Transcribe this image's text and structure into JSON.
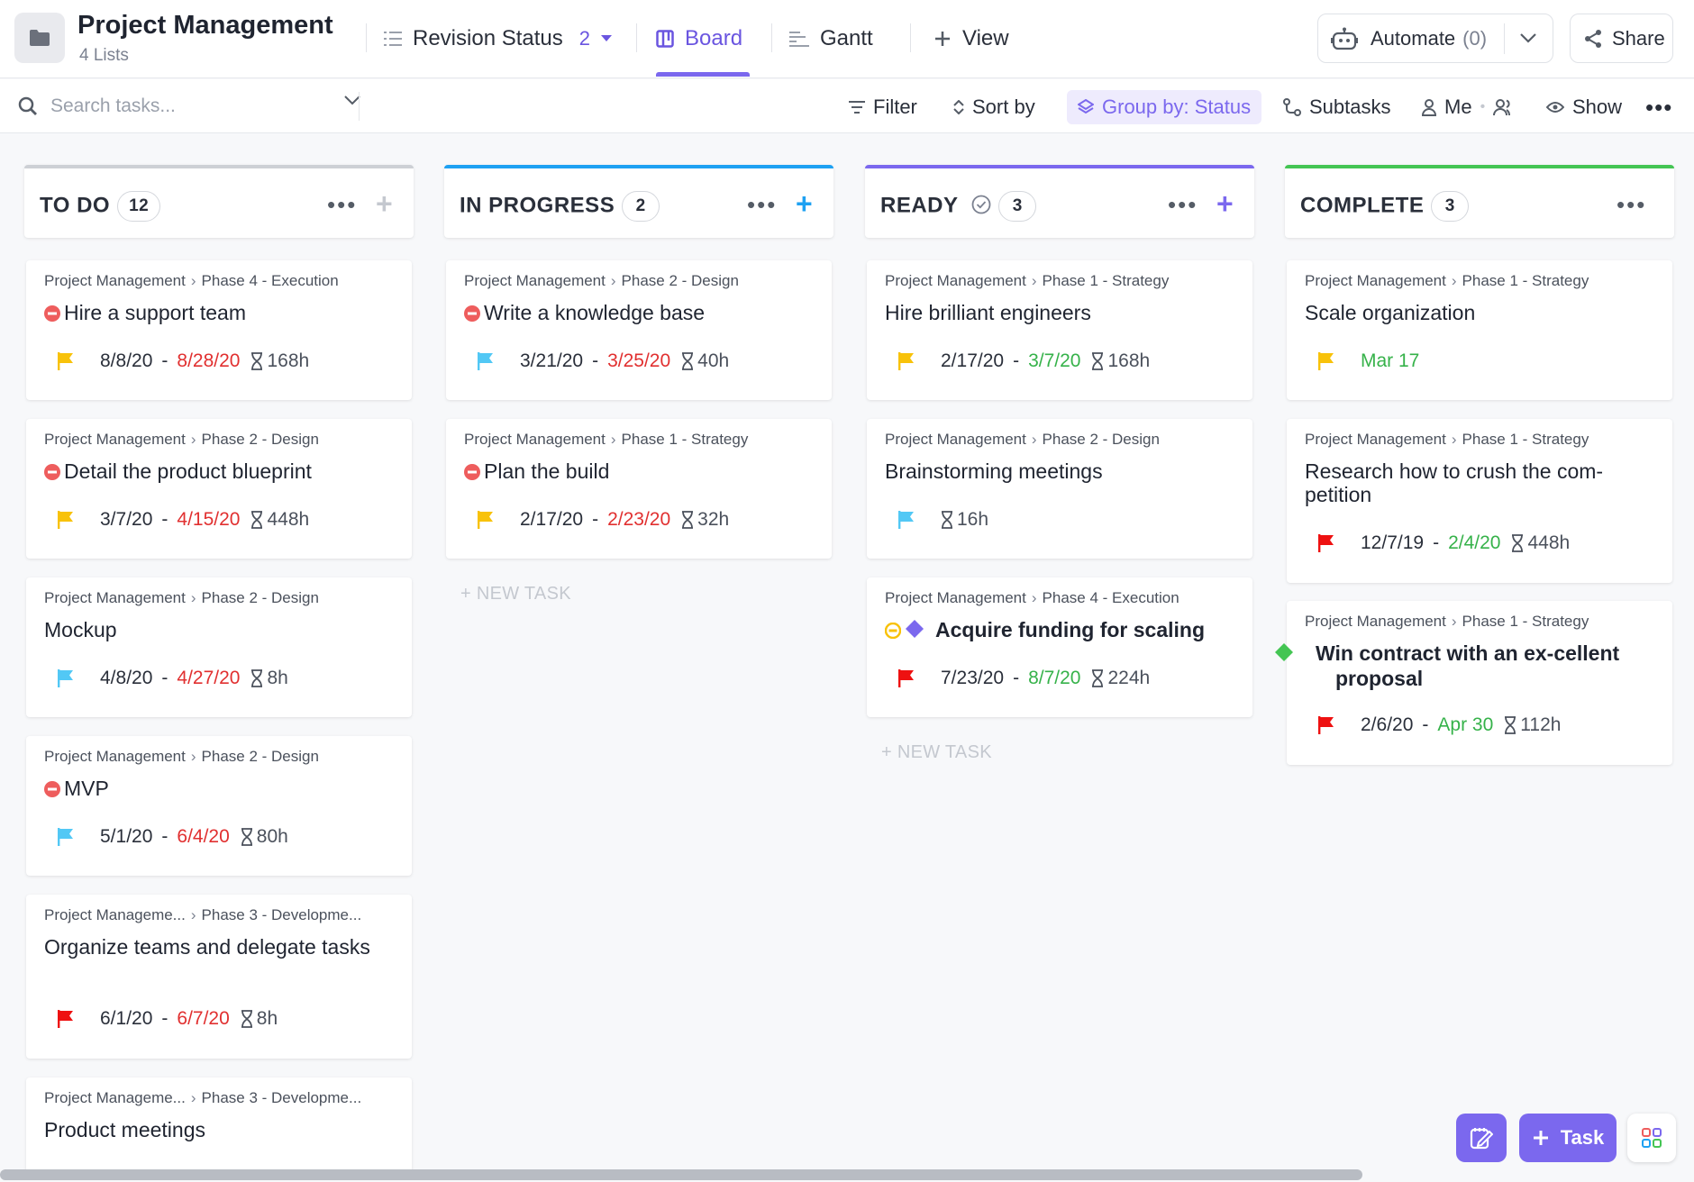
{
  "header": {
    "project_title": "Project Management",
    "project_sub": "4 Lists",
    "views": [
      {
        "label": "Revision Status",
        "count": "2"
      },
      {
        "label": "Board"
      },
      {
        "label": "Gantt"
      },
      {
        "label": "View"
      }
    ],
    "automate_label": "Automate",
    "automate_count": "(0)",
    "share_label": "Share",
    "icons": {
      "folder": "folder-icon",
      "list": "list-icon",
      "board": "board-icon",
      "gantt": "gantt-icon",
      "automate": "robot-icon",
      "share": "share-icon"
    }
  },
  "toolbar": {
    "search_placeholder": "Search tasks...",
    "filter": "Filter",
    "sort": "Sort by",
    "group": "Group by: Status",
    "subtasks": "Subtasks",
    "me": "Me",
    "show": "Show"
  },
  "colors": {
    "accent": "#7b68ee",
    "todo": "#d3d5da",
    "in_progress": "#1ea1f2",
    "ready": "#7b68ee",
    "complete": "#44c553",
    "overdue": "#e13030",
    "done_date": "#36b24a",
    "flag_yellow": "#f8c20a",
    "flag_blue": "#52c8f5",
    "flag_red": "#ee1111"
  },
  "columns": [
    {
      "name": "TO DO",
      "count": "12",
      "tasks": [
        {
          "crumb_a": "Project Management",
          "crumb_b": "Phase 4 - Execution",
          "title": "Hire a support team",
          "status_icon": "blocked-icon",
          "flag": "yellow",
          "start": "8/8/20",
          "due": "8/28/20",
          "due_color": "red",
          "estimate": "168h"
        },
        {
          "crumb_a": "Project Management",
          "crumb_b": "Phase 2 - Design",
          "title": "Detail the product blueprint",
          "status_icon": "blocked-icon",
          "flag": "yellow",
          "start": "3/7/20",
          "due": "4/15/20",
          "due_color": "red",
          "estimate": "448h"
        },
        {
          "crumb_a": "Project Management",
          "crumb_b": "Phase 2 - Design",
          "title": "Mockup",
          "flag": "blue",
          "start": "4/8/20",
          "due": "4/27/20",
          "due_color": "red",
          "estimate": "8h"
        },
        {
          "crumb_a": "Project Management",
          "crumb_b": "Phase 2 - Design",
          "title": "MVP",
          "status_icon": "blocked-icon",
          "flag": "blue",
          "start": "5/1/20",
          "due": "6/4/20",
          "due_color": "red",
          "estimate": "80h"
        },
        {
          "crumb_a": "Project Manageme...",
          "crumb_b": "Phase 3 - Developme...",
          "title": "Organize teams and delegate tasks",
          "flag": "red",
          "start": "6/1/20",
          "due": "6/7/20",
          "due_color": "red",
          "estimate": "8h"
        },
        {
          "crumb_a": "Project Manageme...",
          "crumb_b": "Phase 3 - Developme...",
          "title": "Product meetings"
        }
      ]
    },
    {
      "name": "IN PROGRESS",
      "count": "2",
      "tasks": [
        {
          "crumb_a": "Project Management",
          "crumb_b": "Phase 2 - Design",
          "title": "Write a knowledge base",
          "status_icon": "blocked-icon",
          "flag": "blue",
          "start": "3/21/20",
          "due": "3/25/20",
          "due_color": "red",
          "estimate": "40h"
        },
        {
          "crumb_a": "Project Management",
          "crumb_b": "Phase 1 - Strategy",
          "title": "Plan the build",
          "status_icon": "blocked-icon",
          "flag": "yellow",
          "start": "2/17/20",
          "due": "2/23/20",
          "due_color": "red",
          "estimate": "32h"
        }
      ],
      "new_task": "+ NEW TASK"
    },
    {
      "name": "READY",
      "count": "3",
      "tasks": [
        {
          "crumb_a": "Project Management",
          "crumb_b": "Phase 1 - Strategy",
          "title": "Hire brilliant engineers",
          "flag": "yellow",
          "start": "2/17/20",
          "due": "3/7/20",
          "due_color": "green",
          "estimate": "168h"
        },
        {
          "crumb_a": "Project Management",
          "crumb_b": "Phase 2 - Design",
          "title": "Brainstorming meetings",
          "flag": "blue",
          "estimate": "16h"
        },
        {
          "crumb_a": "Project Management",
          "crumb_b": "Phase 4 - Execution",
          "title": "Acquire funding for scaling",
          "bold": true,
          "status_icon": "waiting-milestone-icon",
          "flag": "red",
          "start": "7/23/20",
          "due": "8/7/20",
          "due_color": "green",
          "estimate": "224h"
        }
      ],
      "new_task": "+ NEW TASK"
    },
    {
      "name": "COMPLETE",
      "count": "3",
      "tasks": [
        {
          "crumb_a": "Project Management",
          "crumb_b": "Phase 1 - Strategy",
          "title": "Scale organization",
          "flag": "yellow",
          "due": "Mar 17",
          "due_color": "green"
        },
        {
          "crumb_a": "Project Management",
          "crumb_b": "Phase 1 - Strategy",
          "title": "Research how to crush the com-petition",
          "flag": "red",
          "start": "12/7/19",
          "due": "2/4/20",
          "due_color": "green",
          "estimate": "448h"
        },
        {
          "crumb_a": "Project Management",
          "crumb_b": "Phase 1 - Strategy",
          "title": "Win contract with an ex-cellent proposal",
          "bold": true,
          "status_icon": "milestone-icon",
          "flag": "red",
          "start": "2/6/20",
          "due": "Apr 30",
          "due_color": "green",
          "estimate": "112h"
        }
      ]
    }
  ],
  "fab": {
    "task_label": "Task",
    "icons": [
      "notepad-icon",
      "plus-icon",
      "apps-icon"
    ]
  }
}
